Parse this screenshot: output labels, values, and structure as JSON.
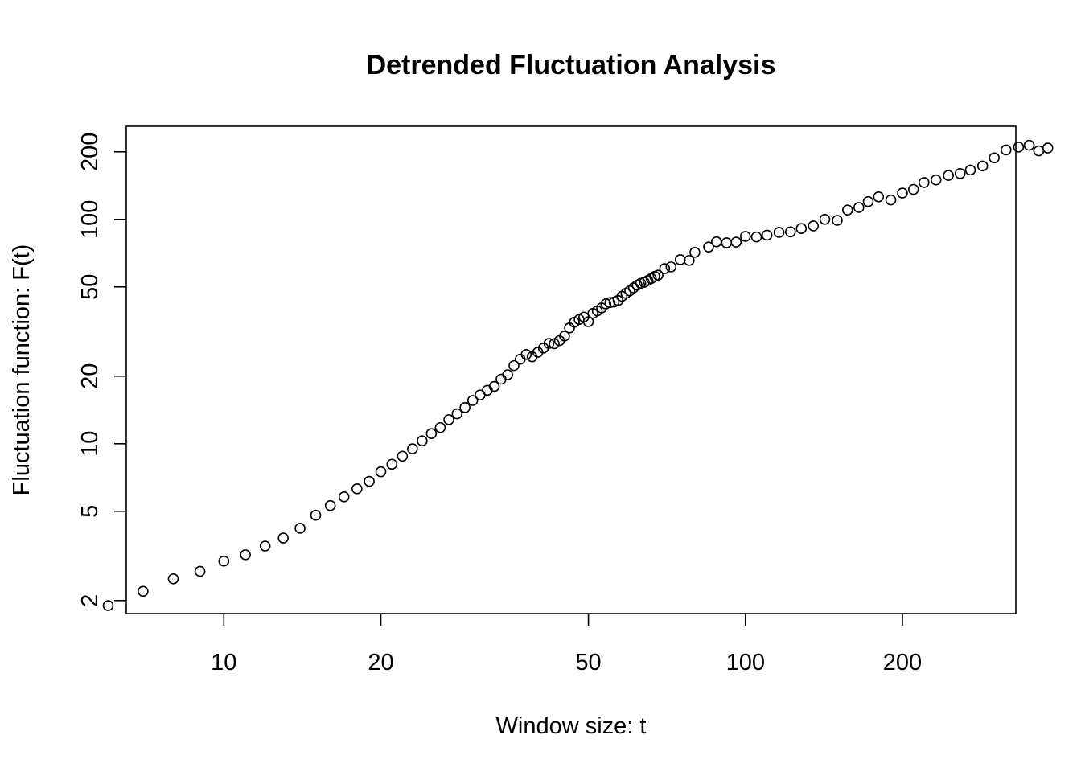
{
  "chart_data": {
    "type": "scatter",
    "title": "Detrended Fluctuation Analysis",
    "xlabel": "Window size: t",
    "ylabel": "Fluctuation function: F(t)",
    "x_scale": "log",
    "y_scale": "log",
    "xlim": [
      6.5,
      330
    ],
    "ylim": [
      1.75,
      260
    ],
    "grid": false,
    "legend": "none",
    "marker": "open-circle",
    "color": "#000000",
    "x_ticks": [
      10,
      20,
      50,
      100,
      200
    ],
    "x_tick_labels": [
      "10",
      "20",
      "50",
      "100",
      "200"
    ],
    "y_ticks": [
      2,
      5,
      10,
      20,
      50,
      100,
      200
    ],
    "y_tick_labels": [
      "2",
      "5",
      "10",
      "20",
      "50",
      "100",
      "200"
    ],
    "points": [
      [
        6,
        1.9
      ],
      [
        7,
        2.2
      ],
      [
        8,
        2.5
      ],
      [
        9,
        2.7
      ],
      [
        10,
        3.0
      ],
      [
        11,
        3.2
      ],
      [
        12,
        3.5
      ],
      [
        13,
        3.8
      ],
      [
        14,
        4.2
      ],
      [
        15,
        4.8
      ],
      [
        16,
        5.3
      ],
      [
        17,
        5.8
      ],
      [
        18,
        6.3
      ],
      [
        19,
        6.8
      ],
      [
        20,
        7.5
      ],
      [
        21,
        8.1
      ],
      [
        22,
        8.8
      ],
      [
        23,
        9.5
      ],
      [
        24,
        10.3
      ],
      [
        25,
        11.1
      ],
      [
        26,
        11.8
      ],
      [
        27,
        12.8
      ],
      [
        28,
        13.6
      ],
      [
        29,
        14.5
      ],
      [
        30,
        15.6
      ],
      [
        31,
        16.5
      ],
      [
        32,
        17.3
      ],
      [
        33,
        18.0
      ],
      [
        34,
        19.4
      ],
      [
        35,
        20.3
      ],
      [
        36,
        22.3
      ],
      [
        37,
        23.8
      ],
      [
        38,
        25.0
      ],
      [
        39,
        24.4
      ],
      [
        40,
        25.6
      ],
      [
        41,
        26.7
      ],
      [
        42,
        28.0
      ],
      [
        43,
        27.9
      ],
      [
        44,
        28.8
      ],
      [
        45,
        30.2
      ],
      [
        46,
        32.8
      ],
      [
        47,
        34.8
      ],
      [
        48,
        35.8
      ],
      [
        49,
        36.7
      ],
      [
        50,
        35.0
      ],
      [
        51,
        38.1
      ],
      [
        52,
        39.1
      ],
      [
        53,
        40.3
      ],
      [
        54,
        42.0
      ],
      [
        55,
        42.6
      ],
      [
        56,
        42.8
      ],
      [
        57,
        43.5
      ],
      [
        58,
        45.4
      ],
      [
        59,
        46.8
      ],
      [
        60,
        48.0
      ],
      [
        61,
        49.5
      ],
      [
        62,
        50.9
      ],
      [
        63,
        51.9
      ],
      [
        64,
        52.4
      ],
      [
        65,
        53.4
      ],
      [
        66,
        54.5
      ],
      [
        67,
        55.7
      ],
      [
        68,
        56.4
      ],
      [
        70,
        60.3
      ],
      [
        72,
        61.4
      ],
      [
        75,
        66.1
      ],
      [
        78,
        65.6
      ],
      [
        80,
        71.3
      ],
      [
        85,
        75.3
      ],
      [
        88,
        79.4
      ],
      [
        92,
        78.6
      ],
      [
        96,
        79.2
      ],
      [
        100,
        84.0
      ],
      [
        105,
        83.5
      ],
      [
        110,
        85.0
      ],
      [
        116,
        87.5
      ],
      [
        122,
        88.0
      ],
      [
        128,
        91.0
      ],
      [
        135,
        93.5
      ],
      [
        142,
        100.0
      ],
      [
        150,
        99.0
      ],
      [
        157,
        110.0
      ],
      [
        165,
        113.0
      ],
      [
        172,
        120.0
      ],
      [
        180,
        126.0
      ],
      [
        190,
        122.0
      ],
      [
        200,
        131.0
      ],
      [
        210,
        136.0
      ],
      [
        220,
        146.0
      ],
      [
        232,
        150.0
      ],
      [
        245,
        157.0
      ],
      [
        258,
        160.0
      ],
      [
        270,
        166.0
      ],
      [
        285,
        173.0
      ],
      [
        300,
        188.0
      ],
      [
        316,
        204.0
      ],
      [
        334,
        210.0
      ],
      [
        350,
        214.0
      ],
      [
        365,
        202.0
      ],
      [
        380,
        208.0
      ]
    ]
  }
}
